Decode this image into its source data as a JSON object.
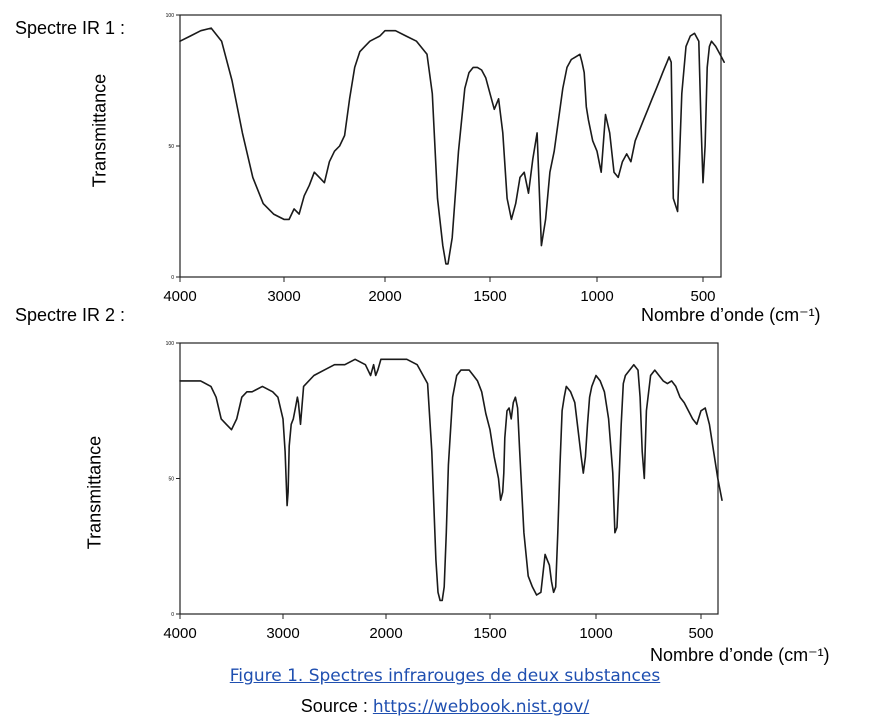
{
  "figure": {
    "caption": "Figure 1. Spectres infrarouges de deux substances",
    "source_prefix": "Source :",
    "source_link": "https://webbook.nist.gov/"
  },
  "chart_data": [
    {
      "type": "line",
      "id": "ir1",
      "label": "Spectre IR 1 :",
      "ylabel": "Transmittance",
      "xlabel": "Nombre d’onde (cm⁻¹)",
      "x_reversed": true,
      "xlim": [
        4000,
        400
      ],
      "ylim": [
        0,
        100
      ],
      "x_ticks": [
        "4000",
        "3000",
        "2000",
        "1500",
        "1000",
        "500"
      ],
      "y_ticks": [
        "100",
        "50",
        "0"
      ],
      "grid": false,
      "series": [
        {
          "x": [
            4000,
            3900,
            3800,
            3700,
            3600,
            3500,
            3400,
            3300,
            3200,
            3100,
            3000,
            2950,
            2900,
            2850,
            2800,
            2750,
            2700,
            2650,
            2600,
            2550,
            2500,
            2450,
            2400,
            2350,
            2300,
            2250,
            2200,
            2150,
            2100,
            2050,
            2000,
            1950,
            1900,
            1850,
            1800,
            1775,
            1750,
            1725,
            1710,
            1700,
            1680,
            1650,
            1620,
            1600,
            1580,
            1560,
            1540,
            1520,
            1500,
            1480,
            1460,
            1440,
            1420,
            1400,
            1380,
            1360,
            1340,
            1320,
            1300,
            1280,
            1260,
            1240,
            1220,
            1200,
            1180,
            1160,
            1140,
            1120,
            1100,
            1080,
            1070,
            1060,
            1050,
            1040,
            1020,
            1000,
            980,
            960,
            940,
            920,
            900,
            880,
            860,
            840,
            820,
            800,
            780,
            760,
            740,
            720,
            700,
            690,
            680,
            670,
            660,
            650,
            640,
            620,
            600,
            580,
            560,
            540,
            520,
            510,
            500,
            490,
            480,
            470,
            460,
            440,
            420,
            400
          ],
          "y": [
            90,
            92,
            94,
            95,
            90,
            75,
            55,
            38,
            28,
            24,
            22,
            22,
            26,
            24,
            31,
            35,
            40,
            38,
            36,
            44,
            48,
            50,
            54,
            68,
            80,
            86,
            88,
            90,
            91,
            92,
            94,
            94,
            92,
            90,
            85,
            70,
            30,
            12,
            5,
            5,
            15,
            48,
            72,
            78,
            80,
            80,
            79,
            76,
            70,
            64,
            68,
            55,
            30,
            22,
            28,
            38,
            40,
            32,
            45,
            55,
            12,
            22,
            40,
            48,
            60,
            72,
            80,
            83,
            84,
            85,
            82,
            78,
            65,
            60,
            52,
            48,
            40,
            62,
            55,
            40,
            38,
            44,
            47,
            44,
            52,
            56,
            60,
            64,
            68,
            72,
            76,
            78,
            80,
            82,
            84,
            82,
            30,
            25,
            70,
            88,
            92,
            93,
            90,
            60,
            36,
            50,
            80,
            88,
            90,
            88,
            85,
            82
          ]
        }
      ]
    },
    {
      "type": "line",
      "id": "ir2",
      "label": "Spectre IR 2 :",
      "ylabel": "Transmittance",
      "xlabel": "Nombre d’onde (cm⁻¹)",
      "x_reversed": true,
      "xlim": [
        4000,
        400
      ],
      "ylim": [
        0,
        100
      ],
      "x_ticks": [
        "4000",
        "3000",
        "2000",
        "1500",
        "1000",
        "500"
      ],
      "y_ticks": [
        "100",
        "50",
        "0"
      ],
      "grid": false,
      "series": [
        {
          "x": [
            4000,
            3900,
            3800,
            3700,
            3650,
            3600,
            3550,
            3500,
            3450,
            3400,
            3350,
            3300,
            3200,
            3100,
            3050,
            3000,
            2980,
            2960,
            2950,
            2940,
            2920,
            2900,
            2880,
            2860,
            2850,
            2830,
            2800,
            2700,
            2600,
            2500,
            2400,
            2300,
            2200,
            2150,
            2120,
            2100,
            2080,
            2050,
            2000,
            1950,
            1900,
            1850,
            1800,
            1780,
            1760,
            1750,
            1740,
            1730,
            1720,
            1710,
            1700,
            1680,
            1660,
            1640,
            1620,
            1600,
            1580,
            1560,
            1540,
            1520,
            1500,
            1480,
            1460,
            1450,
            1440,
            1435,
            1430,
            1420,
            1410,
            1400,
            1390,
            1380,
            1370,
            1360,
            1340,
            1320,
            1300,
            1280,
            1260,
            1240,
            1230,
            1220,
            1210,
            1200,
            1190,
            1180,
            1170,
            1160,
            1150,
            1140,
            1120,
            1100,
            1080,
            1070,
            1060,
            1050,
            1040,
            1030,
            1020,
            1000,
            980,
            960,
            940,
            920,
            910,
            900,
            890,
            880,
            870,
            860,
            840,
            820,
            800,
            790,
            780,
            770,
            760,
            740,
            720,
            700,
            680,
            660,
            640,
            620,
            600,
            580,
            560,
            540,
            520,
            500,
            480,
            460,
            440,
            420,
            400
          ],
          "y": [
            86,
            86,
            86,
            84,
            80,
            72,
            70,
            68,
            72,
            80,
            82,
            82,
            84,
            82,
            80,
            72,
            60,
            40,
            45,
            62,
            70,
            72,
            76,
            80,
            78,
            70,
            84,
            88,
            90,
            92,
            92,
            94,
            92,
            88,
            92,
            88,
            90,
            94,
            94,
            94,
            94,
            92,
            85,
            60,
            20,
            8,
            5,
            5,
            10,
            30,
            55,
            80,
            88,
            90,
            90,
            90,
            88,
            86,
            82,
            74,
            68,
            58,
            50,
            42,
            45,
            52,
            65,
            75,
            76,
            72,
            78,
            80,
            76,
            60,
            30,
            14,
            10,
            7,
            8,
            22,
            20,
            18,
            12,
            8,
            10,
            30,
            55,
            75,
            80,
            84,
            82,
            78,
            65,
            58,
            52,
            58,
            70,
            80,
            84,
            88,
            86,
            82,
            72,
            52,
            30,
            32,
            50,
            70,
            85,
            88,
            90,
            92,
            90,
            80,
            60,
            50,
            75,
            88,
            90,
            88,
            86,
            85,
            86,
            84,
            80,
            78,
            75,
            72,
            70,
            75,
            76,
            70,
            60,
            50,
            42
          ]
        }
      ]
    }
  ]
}
